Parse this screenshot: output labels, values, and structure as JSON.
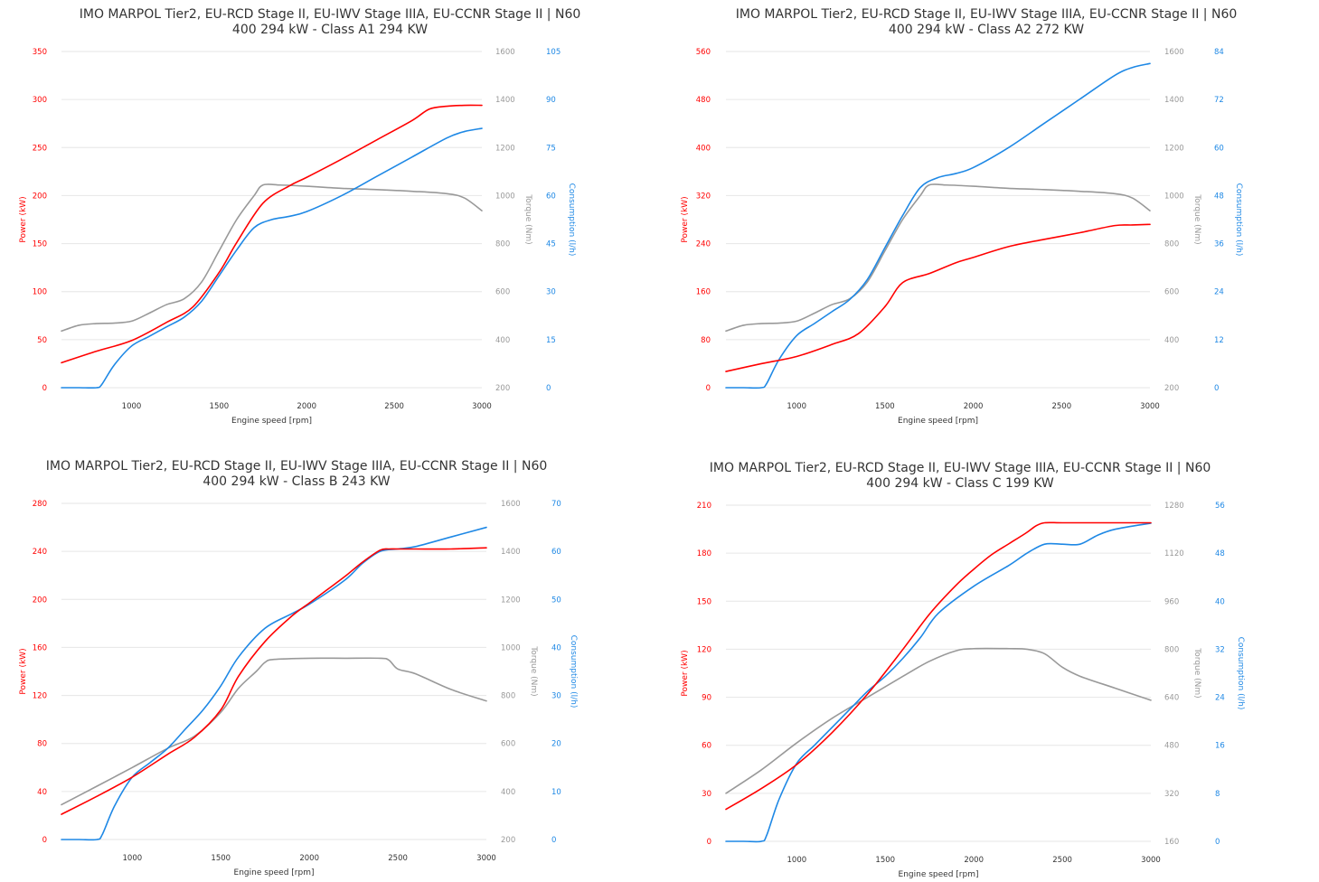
{
  "colors": {
    "power": "#ff0000",
    "torque": "#999999",
    "consumption": "#1e88e5",
    "text": "#333333",
    "grid": "#e6e6e6"
  },
  "chart_data": [
    {
      "type": "line",
      "title_line1": "IMO MARPOL Tier2, EU-RCD Stage II, EU-IWV Stage IIIA, EU-CCNR Stage II | N60",
      "title_line2": "400 294 kW - Class A1 294 KW",
      "xlabel": "Engine speed [rpm]",
      "xlim": [
        600,
        3000
      ],
      "xticks": [
        "1000",
        "1500",
        "2000",
        "2500",
        "3000"
      ],
      "axes": {
        "power": {
          "label": "Power (kW)",
          "range": [
            0,
            350
          ],
          "ticks": [
            "0",
            "50",
            "100",
            "150",
            "200",
            "250",
            "300",
            "350"
          ]
        },
        "torque": {
          "label": "Torque (Nm)",
          "range": [
            200,
            1600
          ],
          "ticks": [
            "200",
            "400",
            "600",
            "800",
            "1000",
            "1200",
            "1400",
            "1600"
          ]
        },
        "consumption": {
          "label": "Consumption (l/h)",
          "range": [
            0,
            105
          ],
          "ticks": [
            "0",
            "15",
            "30",
            "45",
            "60",
            "75",
            "90",
            "105"
          ]
        }
      },
      "series": [
        {
          "axis": "power",
          "x": [
            600,
            800,
            1000,
            1200,
            1350,
            1500,
            1600,
            1750,
            1900,
            2000,
            2200,
            2400,
            2600,
            2700,
            2800,
            2900,
            3000
          ],
          "y": [
            26,
            38,
            49,
            68,
            84,
            120,
            151,
            192,
            210,
            219,
            238,
            258,
            278,
            290,
            293,
            294,
            294
          ]
        },
        {
          "axis": "torque",
          "x": [
            600,
            700,
            800,
            900,
            1000,
            1100,
            1200,
            1300,
            1400,
            1500,
            1600,
            1700,
            1750,
            1850,
            2000,
            2200,
            2400,
            2600,
            2800,
            2900,
            3000
          ],
          "y": [
            436,
            460,
            467,
            469,
            477,
            510,
            546,
            570,
            640,
            770,
            900,
            1000,
            1044,
            1044,
            1039,
            1030,
            1025,
            1018,
            1008,
            990,
            937
          ]
        },
        {
          "axis": "consumption",
          "x": [
            600,
            700,
            800,
            830,
            900,
            1000,
            1100,
            1200,
            1300,
            1400,
            1500,
            1600,
            1700,
            1800,
            1900,
            2000,
            2200,
            2400,
            2600,
            2800,
            2900,
            3000
          ],
          "y": [
            0,
            0,
            0,
            1,
            7,
            13,
            16,
            19,
            22,
            27,
            35,
            43,
            50,
            52.5,
            53.5,
            55,
            60,
            66,
            72,
            78,
            80,
            81
          ]
        }
      ]
    },
    {
      "type": "line",
      "title_line1": "IMO MARPOL Tier2, EU-RCD Stage II, EU-IWV Stage IIIA, EU-CCNR Stage II | N60",
      "title_line2": "400 294 kW - Class A2 272 KW",
      "xlabel": "Engine speed [rpm]",
      "xlim": [
        600,
        3000
      ],
      "xticks": [
        "1000",
        "1500",
        "2000",
        "2500",
        "3000"
      ],
      "axes": {
        "power": {
          "label": "Power (kW)",
          "range": [
            0,
            560
          ],
          "ticks": [
            "0",
            "80",
            "160",
            "240",
            "320",
            "400",
            "480",
            "560"
          ]
        },
        "torque": {
          "label": "Torque (Nm)",
          "range": [
            200,
            1600
          ],
          "ticks": [
            "200",
            "400",
            "600",
            "800",
            "1000",
            "1200",
            "1400",
            "1600"
          ]
        },
        "consumption": {
          "label": "Consumption (l/h)",
          "range": [
            0,
            84
          ],
          "ticks": [
            "0",
            "12",
            "24",
            "36",
            "48",
            "60",
            "72",
            "84"
          ]
        }
      },
      "series": [
        {
          "axis": "power",
          "x": [
            600,
            800,
            1000,
            1200,
            1350,
            1500,
            1600,
            1750,
            1900,
            2000,
            2200,
            2400,
            2600,
            2800,
            2900,
            3000
          ],
          "y": [
            27,
            40,
            52,
            72,
            90,
            135,
            175,
            190,
            208,
            217,
            235,
            247,
            258,
            270,
            271,
            272
          ]
        },
        {
          "axis": "torque",
          "x": [
            600,
            700,
            800,
            900,
            1000,
            1100,
            1200,
            1300,
            1400,
            1500,
            1600,
            1700,
            1750,
            1850,
            2000,
            2200,
            2400,
            2600,
            2800,
            2900,
            3000
          ],
          "y": [
            436,
            460,
            467,
            469,
            477,
            510,
            546,
            570,
            640,
            770,
            900,
            1000,
            1044,
            1044,
            1039,
            1030,
            1025,
            1018,
            1008,
            990,
            937
          ]
        },
        {
          "axis": "consumption",
          "x": [
            600,
            700,
            800,
            830,
            900,
            1000,
            1100,
            1200,
            1300,
            1400,
            1500,
            1600,
            1700,
            1800,
            1900,
            2000,
            2200,
            2400,
            2600,
            2800,
            2900,
            3000
          ],
          "y": [
            0,
            0,
            0,
            1,
            7,
            13,
            16,
            19,
            22,
            27,
            35,
            43,
            50,
            52.5,
            53.5,
            55,
            60,
            66,
            72,
            78,
            80,
            81
          ]
        }
      ]
    },
    {
      "type": "line",
      "title_line1": "IMO MARPOL Tier2, EU-RCD Stage II, EU-IWV Stage IIIA, EU-CCNR Stage II | N60",
      "title_line2": "400 294 kW - Class B 243 KW",
      "xlabel": "Engine speed [rpm]",
      "xlim": [
        600,
        3000
      ],
      "xticks": [
        "1000",
        "1500",
        "2000",
        "2500",
        "3000"
      ],
      "axes": {
        "power": {
          "label": "Power (kW)",
          "range": [
            0,
            280
          ],
          "ticks": [
            "0",
            "40",
            "80",
            "120",
            "160",
            "200",
            "240",
            "280"
          ]
        },
        "torque": {
          "label": "Torque (Nm)",
          "range": [
            200,
            1600
          ],
          "ticks": [
            "200",
            "400",
            "600",
            "800",
            "1000",
            "1200",
            "1400",
            "1600"
          ]
        },
        "consumption": {
          "label": "Consumption (l/h)",
          "range": [
            0,
            70
          ],
          "ticks": [
            "0",
            "10",
            "20",
            "30",
            "40",
            "50",
            "60",
            "70"
          ]
        }
      },
      "series": [
        {
          "axis": "power",
          "x": [
            600,
            800,
            1000,
            1200,
            1350,
            1500,
            1600,
            1750,
            1900,
            2000,
            2100,
            2200,
            2300,
            2400,
            2450,
            2500,
            2600,
            2800,
            3000
          ],
          "y": [
            21,
            36,
            52,
            71,
            85,
            108,
            136,
            165,
            186,
            197,
            208,
            219,
            231,
            241,
            242,
            242,
            242,
            242,
            243
          ]
        },
        {
          "axis": "torque",
          "x": [
            600,
            800,
            1000,
            1200,
            1350,
            1500,
            1600,
            1700,
            1750,
            1800,
            2000,
            2200,
            2400,
            2450,
            2500,
            2600,
            2800,
            3000
          ],
          "y": [
            345,
            422,
            500,
            580,
            630,
            730,
            830,
            900,
            938,
            950,
            955,
            955,
            955,
            947,
            910,
            890,
            825,
            777
          ]
        },
        {
          "axis": "consumption",
          "x": [
            600,
            700,
            800,
            830,
            900,
            1000,
            1100,
            1200,
            1300,
            1400,
            1500,
            1600,
            1750,
            1900,
            2000,
            2200,
            2300,
            2400,
            2500,
            2600,
            2800,
            3000
          ],
          "y": [
            0,
            0,
            0,
            1,
            7,
            13,
            16,
            19,
            23,
            27,
            32,
            38,
            44,
            47,
            49,
            54,
            57.5,
            60,
            60.5,
            61,
            63,
            65
          ]
        }
      ]
    },
    {
      "type": "line",
      "title_line1": "IMO MARPOL Tier2, EU-RCD Stage II, EU-IWV Stage IIIA, EU-CCNR Stage II | N60",
      "title_line2": "400 294 kW - Class C 199 KW",
      "xlabel": "Engine speed [rpm]",
      "xlim": [
        600,
        3000
      ],
      "xticks": [
        "1000",
        "1500",
        "2000",
        "2500",
        "3000"
      ],
      "axes": {
        "power": {
          "label": "Power (kW)",
          "range": [
            0,
            210
          ],
          "ticks": [
            "0",
            "30",
            "60",
            "90",
            "120",
            "150",
            "180",
            "210"
          ]
        },
        "torque": {
          "label": "Torque (Nm)",
          "range": [
            160,
            1280
          ],
          "ticks": [
            "160",
            "320",
            "480",
            "640",
            "800",
            "960",
            "1120",
            "1280"
          ]
        },
        "consumption": {
          "label": "Consumption (l/h)",
          "range": [
            0,
            56
          ],
          "ticks": [
            "0",
            "8",
            "16",
            "24",
            "32",
            "40",
            "48",
            "56"
          ]
        }
      },
      "series": [
        {
          "axis": "power",
          "x": [
            600,
            800,
            1000,
            1200,
            1400,
            1600,
            1750,
            1900,
            2000,
            2100,
            2200,
            2300,
            2350,
            2400,
            2500,
            2700,
            3000
          ],
          "y": [
            20,
            33,
            48,
            68,
            92,
            120,
            142,
            160,
            170,
            179,
            186,
            193,
            197,
            199,
            199,
            199,
            199
          ]
        },
        {
          "axis": "torque",
          "x": [
            600,
            800,
            1000,
            1200,
            1400,
            1600,
            1750,
            1900,
            2000,
            2200,
            2300,
            2400,
            2500,
            2600,
            2800,
            3000
          ],
          "y": [
            320,
            398,
            488,
            570,
            640,
            710,
            760,
            795,
            802,
            802,
            800,
            785,
            740,
            710,
            670,
            630
          ]
        },
        {
          "axis": "consumption",
          "x": [
            600,
            700,
            800,
            830,
            900,
            1000,
            1100,
            1200,
            1300,
            1400,
            1500,
            1600,
            1700,
            1800,
            2000,
            2200,
            2300,
            2400,
            2500,
            2600,
            2700,
            2800,
            3000
          ],
          "y": [
            0,
            0,
            0,
            1,
            7,
            13,
            16,
            19,
            22,
            25,
            27.5,
            30.5,
            34,
            38,
            42.5,
            46,
            48,
            49.5,
            49.5,
            49.5,
            51,
            52,
            53
          ]
        }
      ]
    }
  ]
}
